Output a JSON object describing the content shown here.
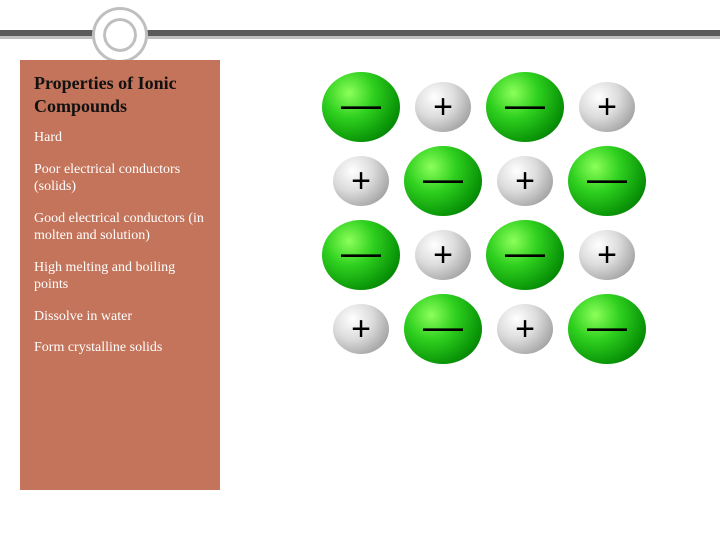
{
  "title": "Properties of Ionic Compounds",
  "sidebar": {
    "bg_color": "#c4745a",
    "title_color": "#111111",
    "item_color": "#ffffff",
    "title_fontsize": 18,
    "item_fontsize": 14,
    "items": [
      "Hard",
      "Poor electrical conductors (solids)",
      "Good electrical conductors (in molten and solution)",
      "High melting and boiling points",
      "Dissolve in water",
      "Form crystalline solids"
    ]
  },
  "decoration": {
    "bar_dark": "#5b5b5b",
    "bar_light": "#bfbfbf",
    "ring_border": "#bfbfbf"
  },
  "lattice": {
    "rows": 4,
    "cols": 4,
    "negative_color_gradient": [
      "#8cff5a",
      "#2fd01f",
      "#0a9608",
      "#035c03"
    ],
    "positive_color_gradient": [
      "#ffffff",
      "#dcdcdc",
      "#a9a9a9",
      "#6e6e6e"
    ],
    "negative_symbol": "—",
    "positive_symbol": "+",
    "grid": [
      [
        "neg",
        "pos",
        "neg",
        "pos"
      ],
      [
        "pos",
        "neg",
        "pos",
        "neg"
      ],
      [
        "neg",
        "pos",
        "neg",
        "pos"
      ],
      [
        "pos",
        "neg",
        "pos",
        "neg"
      ]
    ]
  }
}
